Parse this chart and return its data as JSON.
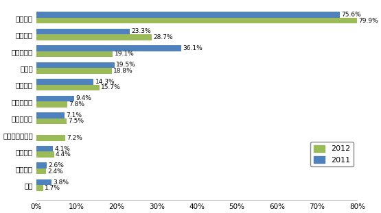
{
  "categories": [
    "产品质量",
    "供货能力",
    "产品性价比",
    "交货期",
    "技术支持",
    "技术领先性",
    "品牌知名度",
    "小批量供应服务",
    "产品组合",
    "付款条件",
    "信誉"
  ],
  "values_2012": [
    79.9,
    28.7,
    19.1,
    18.8,
    15.7,
    7.8,
    7.5,
    7.2,
    4.4,
    2.4,
    1.7
  ],
  "values_2011": [
    75.6,
    23.3,
    36.1,
    19.5,
    14.3,
    9.4,
    7.1,
    null,
    4.1,
    2.6,
    3.8
  ],
  "labels_2012": [
    "79.9%",
    "28.7%",
    "19.1%",
    "18.8%",
    "15.7%",
    "7.8%",
    "7.5%",
    "7.2%",
    "4.4%",
    "2.4%",
    "1.7%"
  ],
  "labels_2011": [
    "75.6%",
    "23.3%",
    "36.1%",
    "19.5%",
    "14.3%",
    "9.4%",
    "7.1%",
    null,
    "4.1%",
    "2.6%",
    "3.8%"
  ],
  "color_2012": "#9BBB59",
  "color_2011": "#4F81BD",
  "xlim": [
    0,
    80
  ],
  "xticks": [
    0,
    10,
    20,
    30,
    40,
    50,
    60,
    70,
    80
  ],
  "xtick_labels": [
    "0%",
    "10%",
    "20%",
    "30%",
    "40%",
    "50%",
    "60%",
    "70%",
    "80%"
  ],
  "legend_2012": "2012",
  "legend_2011": "2011",
  "background_color": "#FFFFFF",
  "bar_height": 0.35,
  "label_fontsize": 6.5,
  "tick_fontsize": 7.5,
  "legend_fontsize": 8
}
